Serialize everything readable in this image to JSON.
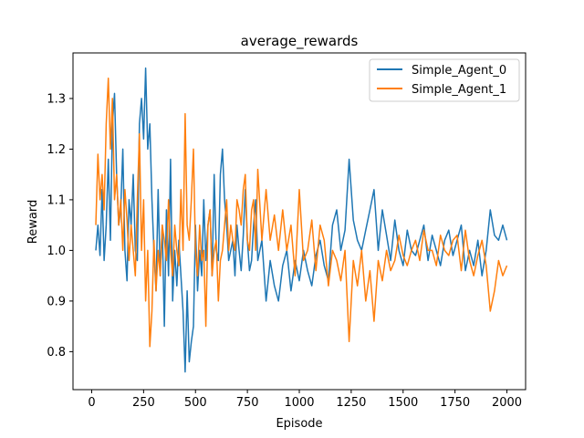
{
  "chart_data": {
    "type": "line",
    "title": "average_rewards",
    "xlabel": "Episode",
    "ylabel": "Reward",
    "xlim": [
      -90,
      2090
    ],
    "ylim": [
      0.725,
      1.39
    ],
    "xticks": [
      0,
      250,
      500,
      750,
      1000,
      1250,
      1500,
      1750,
      2000
    ],
    "yticks": [
      0.8,
      0.9,
      1.0,
      1.1,
      1.2,
      1.3
    ],
    "ytick_labels": [
      "0.8",
      "0.9",
      "1.0",
      "1.1",
      "1.2",
      "1.3"
    ],
    "grid": false,
    "legend_position": "top-right",
    "series": [
      {
        "name": "Simple_Agent_0",
        "color": "#1f77b4",
        "x": [
          20,
          30,
          40,
          50,
          60,
          70,
          80,
          90,
          100,
          110,
          120,
          130,
          140,
          150,
          160,
          170,
          180,
          190,
          200,
          210,
          220,
          230,
          240,
          250,
          260,
          270,
          280,
          290,
          300,
          310,
          320,
          330,
          340,
          350,
          360,
          370,
          380,
          390,
          400,
          410,
          420,
          430,
          440,
          450,
          460,
          470,
          480,
          490,
          500,
          510,
          520,
          530,
          540,
          550,
          560,
          570,
          580,
          590,
          600,
          610,
          620,
          630,
          640,
          650,
          660,
          670,
          680,
          690,
          700,
          710,
          720,
          730,
          740,
          750,
          760,
          770,
          780,
          790,
          800,
          820,
          840,
          860,
          880,
          900,
          920,
          940,
          960,
          980,
          1000,
          1020,
          1040,
          1060,
          1080,
          1100,
          1120,
          1140,
          1160,
          1180,
          1200,
          1220,
          1240,
          1260,
          1280,
          1300,
          1320,
          1340,
          1360,
          1380,
          1400,
          1420,
          1440,
          1460,
          1480,
          1500,
          1520,
          1540,
          1560,
          1580,
          1600,
          1620,
          1640,
          1660,
          1680,
          1700,
          1720,
          1740,
          1760,
          1780,
          1800,
          1820,
          1840,
          1860,
          1880,
          1900,
          1920,
          1940,
          1960,
          1980,
          2000
        ],
        "y": [
          1.0,
          1.05,
          0.99,
          1.12,
          0.98,
          1.05,
          1.18,
          1.02,
          1.25,
          1.31,
          1.15,
          1.05,
          1.08,
          1.2,
          1.0,
          0.94,
          1.1,
          1.05,
          1.15,
          1.0,
          0.98,
          1.25,
          1.3,
          1.22,
          1.36,
          1.2,
          1.25,
          1.1,
          1.0,
          0.92,
          1.12,
          0.95,
          1.05,
          0.85,
          1.08,
          0.95,
          1.18,
          0.9,
          1.0,
          0.93,
          1.02,
          0.95,
          0.88,
          0.76,
          0.92,
          0.78,
          0.82,
          0.85,
          1.05,
          0.92,
          1.0,
          0.95,
          1.1,
          0.98,
          1.05,
          1.08,
          0.95,
          1.15,
          1.0,
          0.98,
          1.15,
          1.2,
          1.1,
          1.05,
          0.98,
          1.0,
          1.02,
          0.95,
          1.05,
          1.0,
          0.96,
          1.03,
          1.12,
          1.02,
          0.96,
          0.98,
          1.05,
          1.1,
          0.98,
          1.02,
          0.9,
          0.98,
          0.93,
          0.9,
          0.97,
          1.0,
          0.92,
          0.98,
          0.94,
          1.0,
          0.96,
          0.93,
          0.99,
          1.02,
          0.97,
          0.94,
          1.05,
          1.08,
          1.0,
          1.04,
          1.18,
          1.06,
          1.02,
          1.0,
          1.04,
          1.08,
          1.12,
          1.0,
          1.08,
          1.03,
          0.98,
          1.06,
          1.0,
          0.97,
          1.04,
          1.0,
          0.99,
          1.02,
          1.05,
          0.98,
          1.03,
          1.0,
          0.97,
          1.02,
          1.04,
          0.99,
          1.02,
          1.05,
          0.96,
          1.0,
          0.97,
          1.02,
          0.95,
          1.0,
          1.08,
          1.03,
          1.02,
          1.05,
          1.02
        ]
      },
      {
        "name": "Simple_Agent_1",
        "color": "#ff7f0e",
        "x": [
          20,
          30,
          40,
          50,
          60,
          70,
          80,
          90,
          100,
          110,
          120,
          130,
          140,
          150,
          160,
          170,
          180,
          190,
          200,
          210,
          220,
          230,
          240,
          250,
          260,
          270,
          280,
          290,
          300,
          310,
          320,
          330,
          340,
          350,
          360,
          370,
          380,
          390,
          400,
          410,
          420,
          430,
          440,
          450,
          460,
          470,
          480,
          490,
          500,
          510,
          520,
          530,
          540,
          550,
          560,
          570,
          580,
          590,
          600,
          610,
          620,
          630,
          640,
          650,
          660,
          670,
          680,
          690,
          700,
          710,
          720,
          730,
          740,
          750,
          760,
          770,
          780,
          790,
          800,
          820,
          840,
          860,
          880,
          900,
          920,
          940,
          960,
          980,
          1000,
          1020,
          1040,
          1060,
          1080,
          1100,
          1120,
          1140,
          1160,
          1180,
          1200,
          1220,
          1240,
          1260,
          1280,
          1300,
          1320,
          1340,
          1360,
          1380,
          1400,
          1420,
          1440,
          1460,
          1480,
          1500,
          1520,
          1540,
          1560,
          1580,
          1600,
          1620,
          1640,
          1660,
          1680,
          1700,
          1720,
          1740,
          1760,
          1780,
          1800,
          1820,
          1840,
          1860,
          1880,
          1900,
          1920,
          1940,
          1960,
          1980,
          2000
        ],
        "y": [
          1.05,
          1.19,
          1.1,
          1.15,
          1.08,
          1.25,
          1.34,
          1.2,
          1.3,
          1.1,
          1.15,
          1.05,
          1.1,
          1.0,
          1.12,
          1.06,
          0.98,
          1.05,
          1.0,
          0.95,
          1.1,
          1.23,
          1.0,
          1.1,
          0.9,
          1.0,
          0.81,
          0.88,
          1.02,
          0.92,
          1.0,
          0.95,
          1.05,
          1.02,
          0.98,
          1.1,
          1.0,
          0.95,
          1.05,
          1.0,
          0.97,
          1.12,
          1.0,
          1.27,
          1.05,
          1.02,
          1.1,
          1.2,
          1.0,
          0.95,
          1.05,
          0.98,
          1.0,
          0.85,
          1.05,
          1.08,
          0.95,
          1.0,
          1.02,
          0.9,
          0.98,
          1.0,
          1.05,
          1.1,
          1.0,
          1.05,
          1.02,
          1.0,
          1.1,
          1.08,
          1.05,
          1.12,
          1.15,
          1.02,
          1.0,
          1.08,
          1.1,
          1.0,
          1.16,
          1.02,
          1.12,
          1.02,
          1.07,
          1.0,
          1.08,
          1.0,
          1.05,
          0.95,
          1.12,
          0.98,
          1.0,
          1.06,
          0.96,
          1.05,
          1.02,
          0.93,
          1.0,
          0.98,
          0.94,
          1.0,
          0.82,
          0.98,
          0.93,
          1.0,
          0.9,
          0.96,
          0.86,
          0.98,
          0.94,
          1.0,
          0.96,
          0.98,
          1.03,
          0.99,
          0.97,
          1.0,
          1.02,
          0.98,
          1.04,
          1.0,
          1.0,
          0.97,
          1.03,
          1.0,
          0.99,
          1.02,
          1.03,
          0.96,
          1.04,
          0.98,
          0.95,
          0.99,
          1.02,
          0.97,
          0.88,
          0.92,
          0.98,
          0.95,
          0.97
        ]
      }
    ]
  }
}
